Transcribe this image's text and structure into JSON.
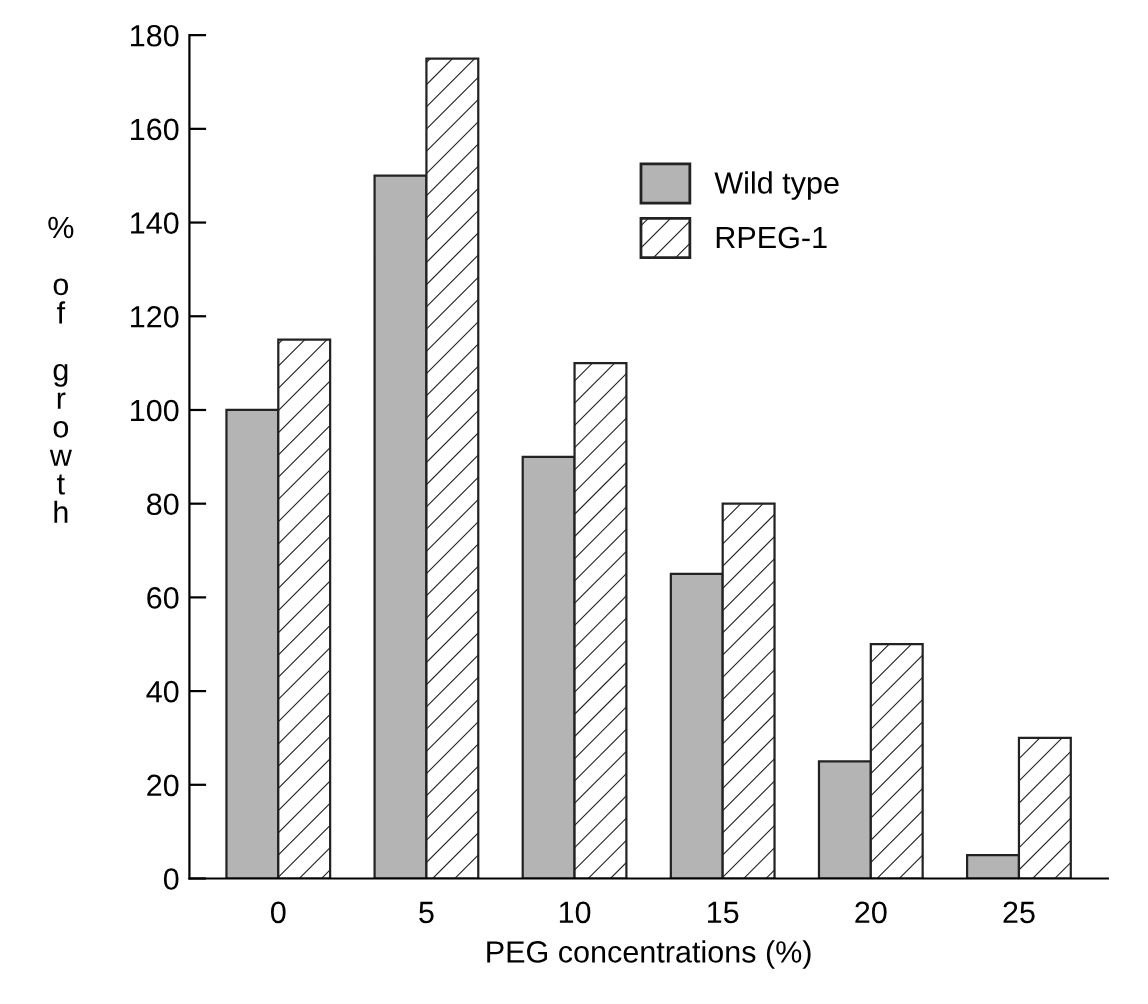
{
  "chart_data": {
    "type": "bar",
    "xlabel": "PEG concentrations (%)",
    "ylabel": "% of growth",
    "categories": [
      "0",
      "5",
      "10",
      "15",
      "20",
      "25"
    ],
    "series": [
      {
        "name": "Wild type",
        "color": "#b4b4b4",
        "values": [
          100,
          150,
          90,
          65,
          25,
          5
        ]
      },
      {
        "name": "RPEG-1",
        "color": "#222222",
        "values": [
          115,
          175,
          110,
          80,
          50,
          30
        ]
      }
    ],
    "ylim": [
      0,
      180
    ],
    "yticks": [
      0,
      20,
      40,
      60,
      80,
      100,
      120,
      140,
      160,
      180
    ],
    "grid": false,
    "legend": "top"
  }
}
